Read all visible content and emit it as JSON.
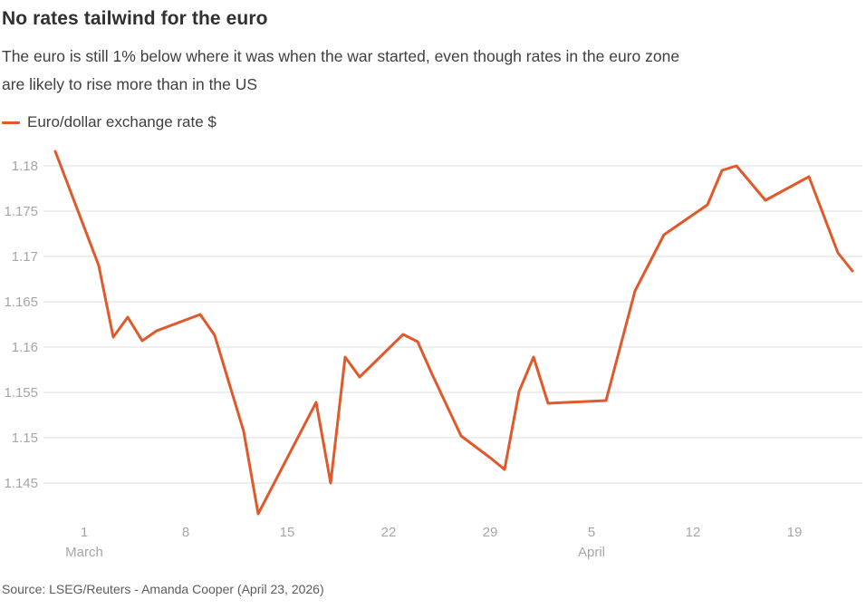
{
  "header": {
    "title": "No rates tailwind for the euro",
    "subtitle_line1": "The euro is still 1% below where it was when the war started, even though rates in the euro zone",
    "subtitle_line2": "are likely to rise more than in the US"
  },
  "legend": {
    "label": "Euro/dollar exchange rate $"
  },
  "source": "Source: LSEG/Reuters - Amanda Cooper (April 23, 2026)",
  "colors": {
    "line": "#e0592b",
    "grid": "#dcdcdc",
    "axis_text": "#a6a6a6",
    "title_text": "#303030",
    "body_text": "#3f3f3f",
    "source_text": "#5c5c5c",
    "background": "#ffffff"
  },
  "chart_data": {
    "type": "line",
    "title": "No rates tailwind for the euro",
    "xlabel": "",
    "ylabel": "Euro/dollar exchange rate $",
    "grid": "horizontal",
    "legend_position": "top-left",
    "ylim": [
      1.1405,
      1.1835
    ],
    "y_ticks": [
      {
        "value": 1.145,
        "label": "1.145"
      },
      {
        "value": 1.15,
        "label": "1.15"
      },
      {
        "value": 1.155,
        "label": "1.155"
      },
      {
        "value": 1.16,
        "label": "1.16"
      },
      {
        "value": 1.165,
        "label": "1.165"
      },
      {
        "value": 1.17,
        "label": "1.17"
      },
      {
        "value": 1.175,
        "label": "1.175"
      },
      {
        "value": 1.18,
        "label": "1.18"
      }
    ],
    "x_ticks": [
      {
        "day": 2,
        "label": "1",
        "sub": "March"
      },
      {
        "day": 9,
        "label": "8"
      },
      {
        "day": 16,
        "label": "15"
      },
      {
        "day": 23,
        "label": "22"
      },
      {
        "day": 30,
        "label": "29"
      },
      {
        "day": 37,
        "label": "5",
        "sub": "April"
      },
      {
        "day": 44,
        "label": "12"
      },
      {
        "day": 51,
        "label": "19"
      }
    ],
    "series": [
      {
        "name": "Euro/dollar exchange rate $",
        "points": [
          {
            "date": "Feb 27",
            "day": 0,
            "value": 1.1816
          },
          {
            "date": "Mar 2",
            "day": 3,
            "value": 1.169
          },
          {
            "date": "Mar 3",
            "day": 4,
            "value": 1.1611
          },
          {
            "date": "Mar 4",
            "day": 5,
            "value": 1.1633
          },
          {
            "date": "Mar 5",
            "day": 6,
            "value": 1.1607
          },
          {
            "date": "Mar 6",
            "day": 7,
            "value": 1.1618
          },
          {
            "date": "Mar 9",
            "day": 10,
            "value": 1.1636
          },
          {
            "date": "Mar 10",
            "day": 11,
            "value": 1.1613
          },
          {
            "date": "Mar 12",
            "day": 13,
            "value": 1.1507
          },
          {
            "date": "Mar 13",
            "day": 14,
            "value": 1.1416
          },
          {
            "date": "Mar 17",
            "day": 18,
            "value": 1.1539
          },
          {
            "date": "Mar 18",
            "day": 19,
            "value": 1.145
          },
          {
            "date": "Mar 19",
            "day": 20,
            "value": 1.1589
          },
          {
            "date": "Mar 20",
            "day": 21,
            "value": 1.1567
          },
          {
            "date": "Mar 23",
            "day": 24,
            "value": 1.1614
          },
          {
            "date": "Mar 24",
            "day": 25,
            "value": 1.1606
          },
          {
            "date": "Mar 25",
            "day": 26,
            "value": 1.157
          },
          {
            "date": "Mar 27",
            "day": 28,
            "value": 1.1502
          },
          {
            "date": "Mar 29",
            "day": 30,
            "value": 1.1478
          },
          {
            "date": "Mar 30",
            "day": 31,
            "value": 1.1465
          },
          {
            "date": "Mar 31",
            "day": 32,
            "value": 1.1551
          },
          {
            "date": "Apr 1",
            "day": 33,
            "value": 1.1589
          },
          {
            "date": "Apr 2",
            "day": 34,
            "value": 1.1538
          },
          {
            "date": "Apr 6",
            "day": 38,
            "value": 1.1541
          },
          {
            "date": "Apr 8",
            "day": 40,
            "value": 1.1662
          },
          {
            "date": "Apr 10",
            "day": 42,
            "value": 1.1724
          },
          {
            "date": "Apr 13",
            "day": 45,
            "value": 1.1757
          },
          {
            "date": "Apr 14",
            "day": 46,
            "value": 1.1795
          },
          {
            "date": "Apr 15",
            "day": 47,
            "value": 1.18
          },
          {
            "date": "Apr 17",
            "day": 49,
            "value": 1.1762
          },
          {
            "date": "Apr 20",
            "day": 52,
            "value": 1.1788
          },
          {
            "date": "Apr 22",
            "day": 54,
            "value": 1.1704
          },
          {
            "date": "Apr 23",
            "day": 55,
            "value": 1.1684
          }
        ]
      }
    ]
  }
}
